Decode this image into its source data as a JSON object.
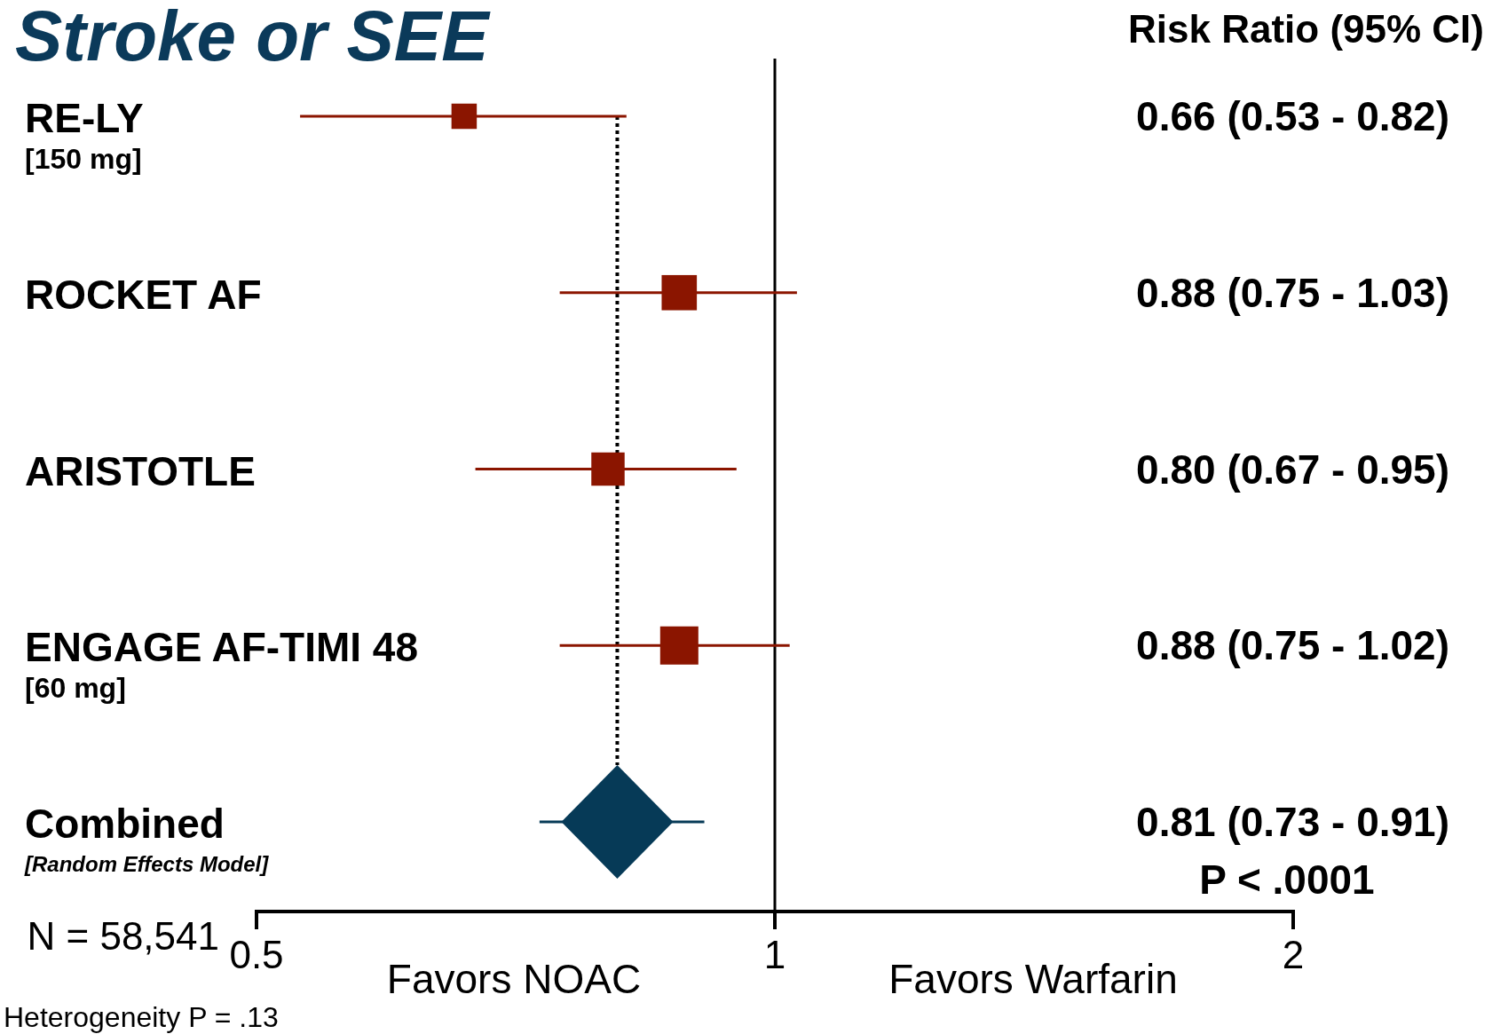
{
  "chart_data": {
    "type": "scatter",
    "orientation": "horizontal",
    "title": "Stroke or SEE",
    "categories": [
      "RE-LY\n[150 mg]",
      "ROCKET AF",
      "ARISTOTLE",
      "ENGAGE AF-TIMI 48\n[60 mg]",
      "Combined\n[Random Effects Model]"
    ],
    "series": [
      {
        "type": "bubble",
        "color": "#8b1500",
        "marker": "square",
        "values": [
          0.66,
          0.88,
          0.8,
          0.88,
          null
        ],
        "errors": [
          [
            0.53,
            0.82
          ],
          [
            0.75,
            1.03
          ],
          [
            0.67,
            0.95
          ],
          [
            0.75,
            1.02
          ],
          null
        ],
        "sizes": [
          0.44,
          0.85,
          0.76,
          1,
          null
        ]
      },
      {
        "color": "#063a57",
        "marker": "diamond",
        "values": [
          null,
          null,
          null,
          null,
          0.81
        ],
        "errors": [
          null,
          null,
          null,
          null,
          [
            0.73,
            0.91
          ]
        ]
      }
    ],
    "log": "x",
    "xlim": [
      0.5,
      2
    ],
    "xticks": [
      0.5,
      1,
      2
    ],
    "ref_lines": [
      {
        "axis": "x",
        "value": 1,
        "line_style": "solid"
      },
      {
        "axis": "x",
        "value": 0.81,
        "line_style": "dotted"
      }
    ],
    "annotations": [
      "0.66 (0.53 - 0.82)",
      "0.88 (0.75 - 1.03)",
      "0.80 (0.67 - 0.95)",
      "0.88 (0.75 - 1.02)",
      "0.81 (0.73 - 0.91)",
      "Risk Ratio (95% CI)",
      "P < .0001",
      "N = 58,541",
      "Heterogeneity P = .13",
      "Favors NOAC",
      "Favors Warfarin"
    ]
  }
}
